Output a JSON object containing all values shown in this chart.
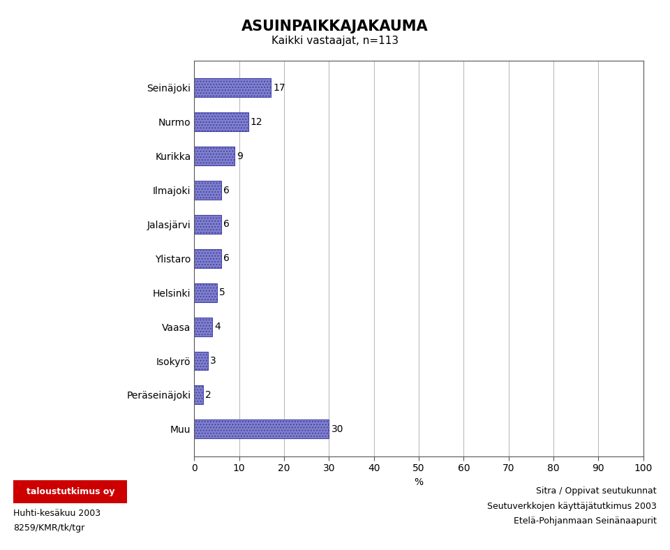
{
  "title": "ASUINPAIKKAJAKAUMA",
  "subtitle": "Kaikki vastaajat, n=113",
  "categories": [
    "Seinäjoki",
    "Nurmo",
    "Kurikka",
    "Ilmajoki",
    "Jalasjärvi",
    "Ylistaro",
    "Helsinki",
    "Vaasa",
    "Isokyrö",
    "Peräseinäjoki",
    "Muu"
  ],
  "values": [
    17,
    12,
    9,
    6,
    6,
    6,
    5,
    4,
    3,
    2,
    30
  ],
  "bar_color": "#8080cc",
  "bar_hatch": "....",
  "bar_edgecolor": "#4444aa",
  "xlim": [
    0,
    100
  ],
  "xticks": [
    0,
    10,
    20,
    30,
    40,
    50,
    60,
    70,
    80,
    90,
    100
  ],
  "xlabel": "%",
  "background_color": "#ffffff",
  "plot_bg_color": "#ffffff",
  "title_fontsize": 15,
  "subtitle_fontsize": 11,
  "label_fontsize": 10,
  "tick_fontsize": 10,
  "value_fontsize": 10,
  "footer_left_line1": "Huhti-kesäkuu 2003",
  "footer_left_line2": "8259/KMR/tk/tgr",
  "footer_right_line1": "Sitra / Oppivat seutukunnat",
  "footer_right_line2": "Seutuverkkojen käyttäjätutkimus 2003",
  "footer_right_line3": "Etelä-Pohjanmaan Seinänaapurit",
  "logo_text": "taloustutkimus oy",
  "logo_bg": "#cc0000",
  "logo_fg": "#ffffff",
  "grid_color": "#bbbbbb",
  "spine_color": "#555555"
}
